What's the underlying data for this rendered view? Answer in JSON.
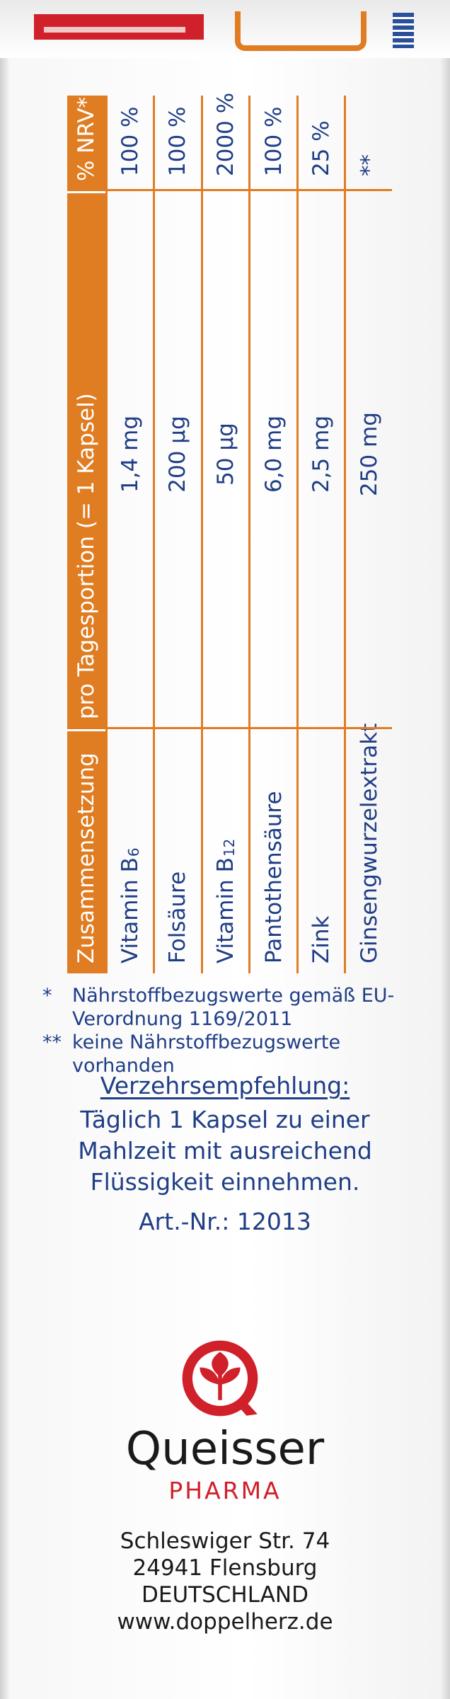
{
  "table": {
    "headers": [
      "Zusammensetzung",
      "pro Tagesportion (= 1 Kapsel)",
      "% NRV*"
    ],
    "rows": [
      {
        "name": "Vitamin B",
        "sub": "6",
        "amount": "1,4 mg",
        "nrv": "100 %"
      },
      {
        "name": "Folsäure",
        "sub": "",
        "amount": "200  µg",
        "nrv": "100 %"
      },
      {
        "name": "Vitamin B",
        "sub": "12",
        "amount": "50  µg",
        "nrv": "2000 %"
      },
      {
        "name": "Pantothensäure",
        "sub": "",
        "amount": "6,0 mg",
        "nrv": "100 %"
      },
      {
        "name": "Zink",
        "sub": "",
        "amount": "2,5 mg",
        "nrv": "25 %"
      },
      {
        "name": "Ginsengwurzelextrakt",
        "sub": "",
        "amount": "250 mg",
        "nrv": "**"
      }
    ]
  },
  "footnotes": [
    {
      "mark": "*",
      "text": "Nährstoffbezugswerte gemäß EU-Verordnung 1169/2011"
    },
    {
      "mark": "**",
      "text": "keine Nährstoffbezugswerte vorhanden"
    }
  ],
  "recommendation": {
    "title": "Verzehrsempfehlung:",
    "lines": [
      "Täglich 1 Kapsel zu einer",
      "Mahlzeit mit ausreichend",
      "Flüssigkeit einnehmen."
    ]
  },
  "article_number": "Art.-Nr.: 12013",
  "brand": {
    "name": "Queisser",
    "sub": "PHARMA",
    "logo_icon": "queisser-leaf-logo-icon",
    "colors": {
      "red": "#d0202a",
      "orange": "#e07d22",
      "blue": "#1f3e86"
    }
  },
  "address": {
    "lines": [
      "Schleswiger Str. 74",
      "24941 Flensburg",
      "DEUTSCHLAND",
      "www.doppelherz.de"
    ]
  }
}
